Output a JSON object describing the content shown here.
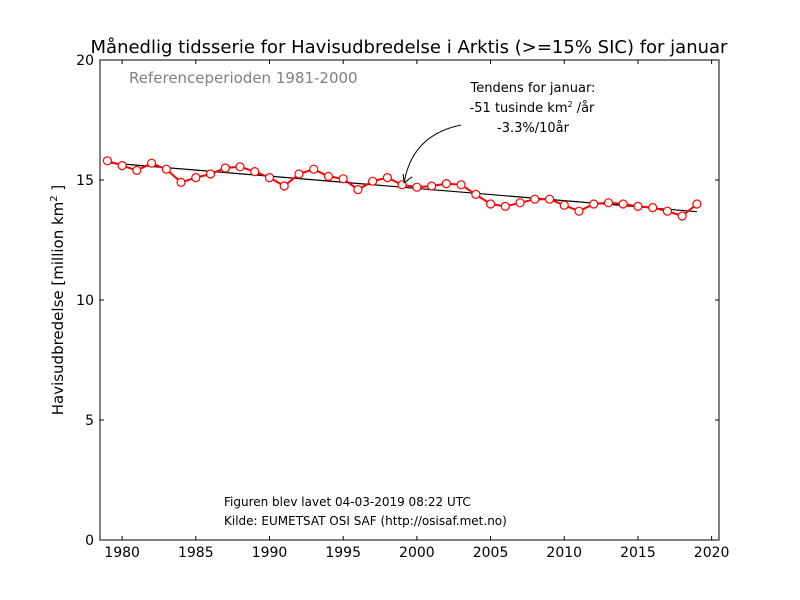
{
  "colors": {
    "series": "#ff0000",
    "trend": "#000000",
    "reference_text": "#808080",
    "marker_fill": "#ffffff"
  },
  "annotation": {
    "line1": "Tendens for januar:",
    "line2_prefix": "-51 tusinde km",
    "line2_sup": "2",
    "line2_suffix": " /år",
    "line3": "-3.3%/10år",
    "arrow_target": {
      "x": 1999,
      "y": 14.8
    }
  },
  "credits": {
    "created": "Figuren blev lavet 04-03-2019 08:22 UTC",
    "source": "Kilde: EUMETSAT OSI SAF (http://osisaf.met.no)"
  },
  "chart_data": {
    "type": "line",
    "title": "Månedlig tidsserie for Havisudbredelse i Arktis (>=15% SIC) for januar",
    "subtitle": "Referenceperioden 1981-2000",
    "xlabel": "",
    "ylabel_prefix": "Havisudbredelse [million km",
    "ylabel_sup": "2",
    "ylabel_suffix": " ]",
    "xlim": [
      1978.5,
      2020.5
    ],
    "ylim": [
      0,
      20
    ],
    "xticks": [
      1980,
      1985,
      1990,
      1995,
      2000,
      2005,
      2010,
      2015,
      2020
    ],
    "yticks": [
      0,
      5,
      10,
      15,
      20
    ],
    "grid": false,
    "legend": "none",
    "series": [
      {
        "x": [
          1979,
          1980,
          1981,
          1982,
          1983,
          1984,
          1985,
          1986,
          1987,
          1988,
          1989,
          1990,
          1991,
          1992,
          1993,
          1994,
          1995,
          1996,
          1997,
          1998,
          1999,
          2000,
          2001,
          2002,
          2003,
          2004,
          2005,
          2006,
          2007,
          2008,
          2009,
          2010,
          2011,
          2012,
          2013,
          2014,
          2015,
          2016,
          2017,
          2018,
          2019
        ],
        "values": [
          15.8,
          15.6,
          15.4,
          15.7,
          15.45,
          14.9,
          15.1,
          15.25,
          15.5,
          15.55,
          15.35,
          15.1,
          14.75,
          15.25,
          15.45,
          15.15,
          15.05,
          14.6,
          14.95,
          15.1,
          14.8,
          14.7,
          14.75,
          14.85,
          14.8,
          14.4,
          14.0,
          13.9,
          14.05,
          14.2,
          14.2,
          13.95,
          13.7,
          14.0,
          14.05,
          14.0,
          13.9,
          13.85,
          13.7,
          13.5,
          14.0
        ]
      }
    ],
    "trend_line": {
      "x": [
        1979,
        2019
      ],
      "values": [
        15.72,
        13.68
      ]
    }
  }
}
